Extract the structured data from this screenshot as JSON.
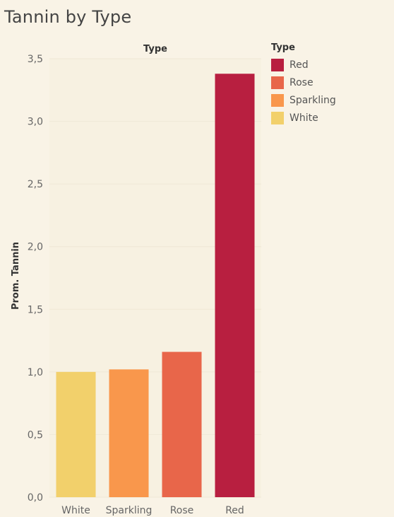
{
  "title": "Tannin by Type",
  "legend": {
    "title": "Type",
    "items": [
      {
        "label": "Red",
        "color": "#b81f40"
      },
      {
        "label": "Rose",
        "color": "#e8664a"
      },
      {
        "label": "Sparkling",
        "color": "#f9974c"
      },
      {
        "label": "White",
        "color": "#f2d06b"
      }
    ]
  },
  "chart_data": {
    "type": "bar",
    "title": "Tannin by Type",
    "column_header": "Type",
    "ylabel": "Prom. Tannin",
    "xlabel": "",
    "categories": [
      "White",
      "Sparkling",
      "Rose",
      "Red"
    ],
    "values": [
      1.0,
      1.02,
      1.16,
      3.38
    ],
    "colors": [
      "#f2d06b",
      "#f9974c",
      "#e8664a",
      "#b81f40"
    ],
    "ylim": [
      0,
      3.5
    ],
    "yticks": [
      "0,0",
      "0,5",
      "1,0",
      "1,5",
      "2,0",
      "2,5",
      "3,0",
      "3,5"
    ],
    "grid": true,
    "legend_position": "right"
  }
}
